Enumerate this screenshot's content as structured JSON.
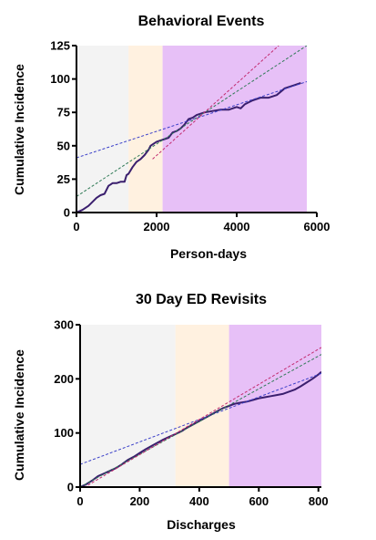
{
  "colors": {
    "phase1": "#f3f3f3",
    "phase2": "#fff1e0",
    "phase3": "#e7c0f7",
    "observed": "#3a1f6e",
    "trend_a": "#3a3fc8",
    "trend_b": "#2f7a56",
    "trend_c": "#c22b6f"
  },
  "chart_data": [
    {
      "type": "line",
      "title": "Behavioral Events",
      "xlabel": "Person-days",
      "ylabel": "Cumulative Incidence",
      "xlim": [
        0,
        6000
      ],
      "ylim": [
        0,
        125
      ],
      "xticks": [
        "0",
        "2000",
        "4000",
        "6000"
      ],
      "yticks": [
        "0",
        "25",
        "50",
        "75",
        "100",
        "125"
      ],
      "phases": [
        {
          "x0": 0,
          "x1": 1300,
          "color": "phase1"
        },
        {
          "x0": 1300,
          "x1": 2150,
          "color": "phase2"
        },
        {
          "x0": 2150,
          "x1": 5750,
          "color": "phase3"
        }
      ],
      "series": [
        {
          "color": "observed",
          "x": [
            0,
            150,
            300,
            400,
            500,
            600,
            700,
            800,
            850,
            900,
            1000,
            1100,
            1200,
            1250,
            1300,
            1400,
            1500,
            1600,
            1700,
            1800,
            1850,
            1900,
            2000,
            2100,
            2200,
            2300,
            2400,
            2500,
            2600,
            2700,
            2800,
            2900,
            3000,
            3200,
            3400,
            3600,
            3800,
            4000,
            4100,
            4200,
            4400,
            4600,
            4800,
            5000,
            5200,
            5400,
            5600
          ],
          "y": [
            0,
            2,
            5,
            8,
            11,
            13,
            14,
            20,
            21,
            22,
            22,
            23,
            23,
            28,
            29,
            34,
            38,
            40,
            43,
            47,
            50,
            51,
            53,
            54,
            55,
            56,
            60,
            61,
            63,
            66,
            70,
            71,
            73,
            75,
            76,
            77,
            77,
            79,
            78,
            81,
            84,
            86,
            86,
            88,
            93,
            95,
            97
          ]
        },
        {
          "color": "trend_a",
          "dashed": true,
          "x": [
            0,
            5750
          ],
          "y": [
            41,
            98
          ]
        },
        {
          "color": "trend_b",
          "dashed": true,
          "x": [
            0,
            5750
          ],
          "y": [
            12,
            125
          ]
        },
        {
          "color": "trend_c",
          "dashed": true,
          "x": [
            1900,
            5050
          ],
          "y": [
            40,
            125
          ]
        }
      ]
    },
    {
      "type": "line",
      "title": "30 Day ED Revisits",
      "xlabel": "Discharges",
      "ylabel": "Cumulative Incidence",
      "xlim": [
        0,
        810
      ],
      "ylim": [
        0,
        300
      ],
      "xticks": [
        "0",
        "200",
        "400",
        "600",
        "800"
      ],
      "yticks": [
        "0",
        "100",
        "200",
        "300"
      ],
      "phases": [
        {
          "x0": 0,
          "x1": 320,
          "color": "phase1"
        },
        {
          "x0": 320,
          "x1": 500,
          "color": "phase2"
        },
        {
          "x0": 500,
          "x1": 810,
          "color": "phase3"
        }
      ],
      "series": [
        {
          "color": "observed",
          "x": [
            0,
            20,
            40,
            60,
            80,
            100,
            120,
            140,
            160,
            180,
            200,
            220,
            240,
            260,
            280,
            300,
            320,
            340,
            360,
            380,
            400,
            420,
            440,
            460,
            480,
            500,
            520,
            540,
            560,
            580,
            600,
            620,
            640,
            660,
            680,
            700,
            720,
            740,
            760,
            780,
            800,
            810
          ],
          "y": [
            0,
            5,
            12,
            20,
            25,
            30,
            35,
            42,
            50,
            56,
            63,
            70,
            76,
            82,
            88,
            93,
            98,
            103,
            110,
            116,
            122,
            128,
            134,
            140,
            146,
            150,
            154,
            156,
            158,
            161,
            164,
            166,
            168,
            170,
            172,
            176,
            180,
            186,
            193,
            200,
            208,
            213
          ]
        },
        {
          "color": "trend_a",
          "dashed": true,
          "x": [
            0,
            810
          ],
          "y": [
            42,
            210
          ]
        },
        {
          "color": "trend_b",
          "dashed": true,
          "x": [
            0,
            810
          ],
          "y": [
            0,
            245
          ]
        },
        {
          "color": "trend_c",
          "dashed": true,
          "x": [
            0,
            810
          ],
          "y": [
            -5,
            258
          ]
        }
      ]
    }
  ]
}
